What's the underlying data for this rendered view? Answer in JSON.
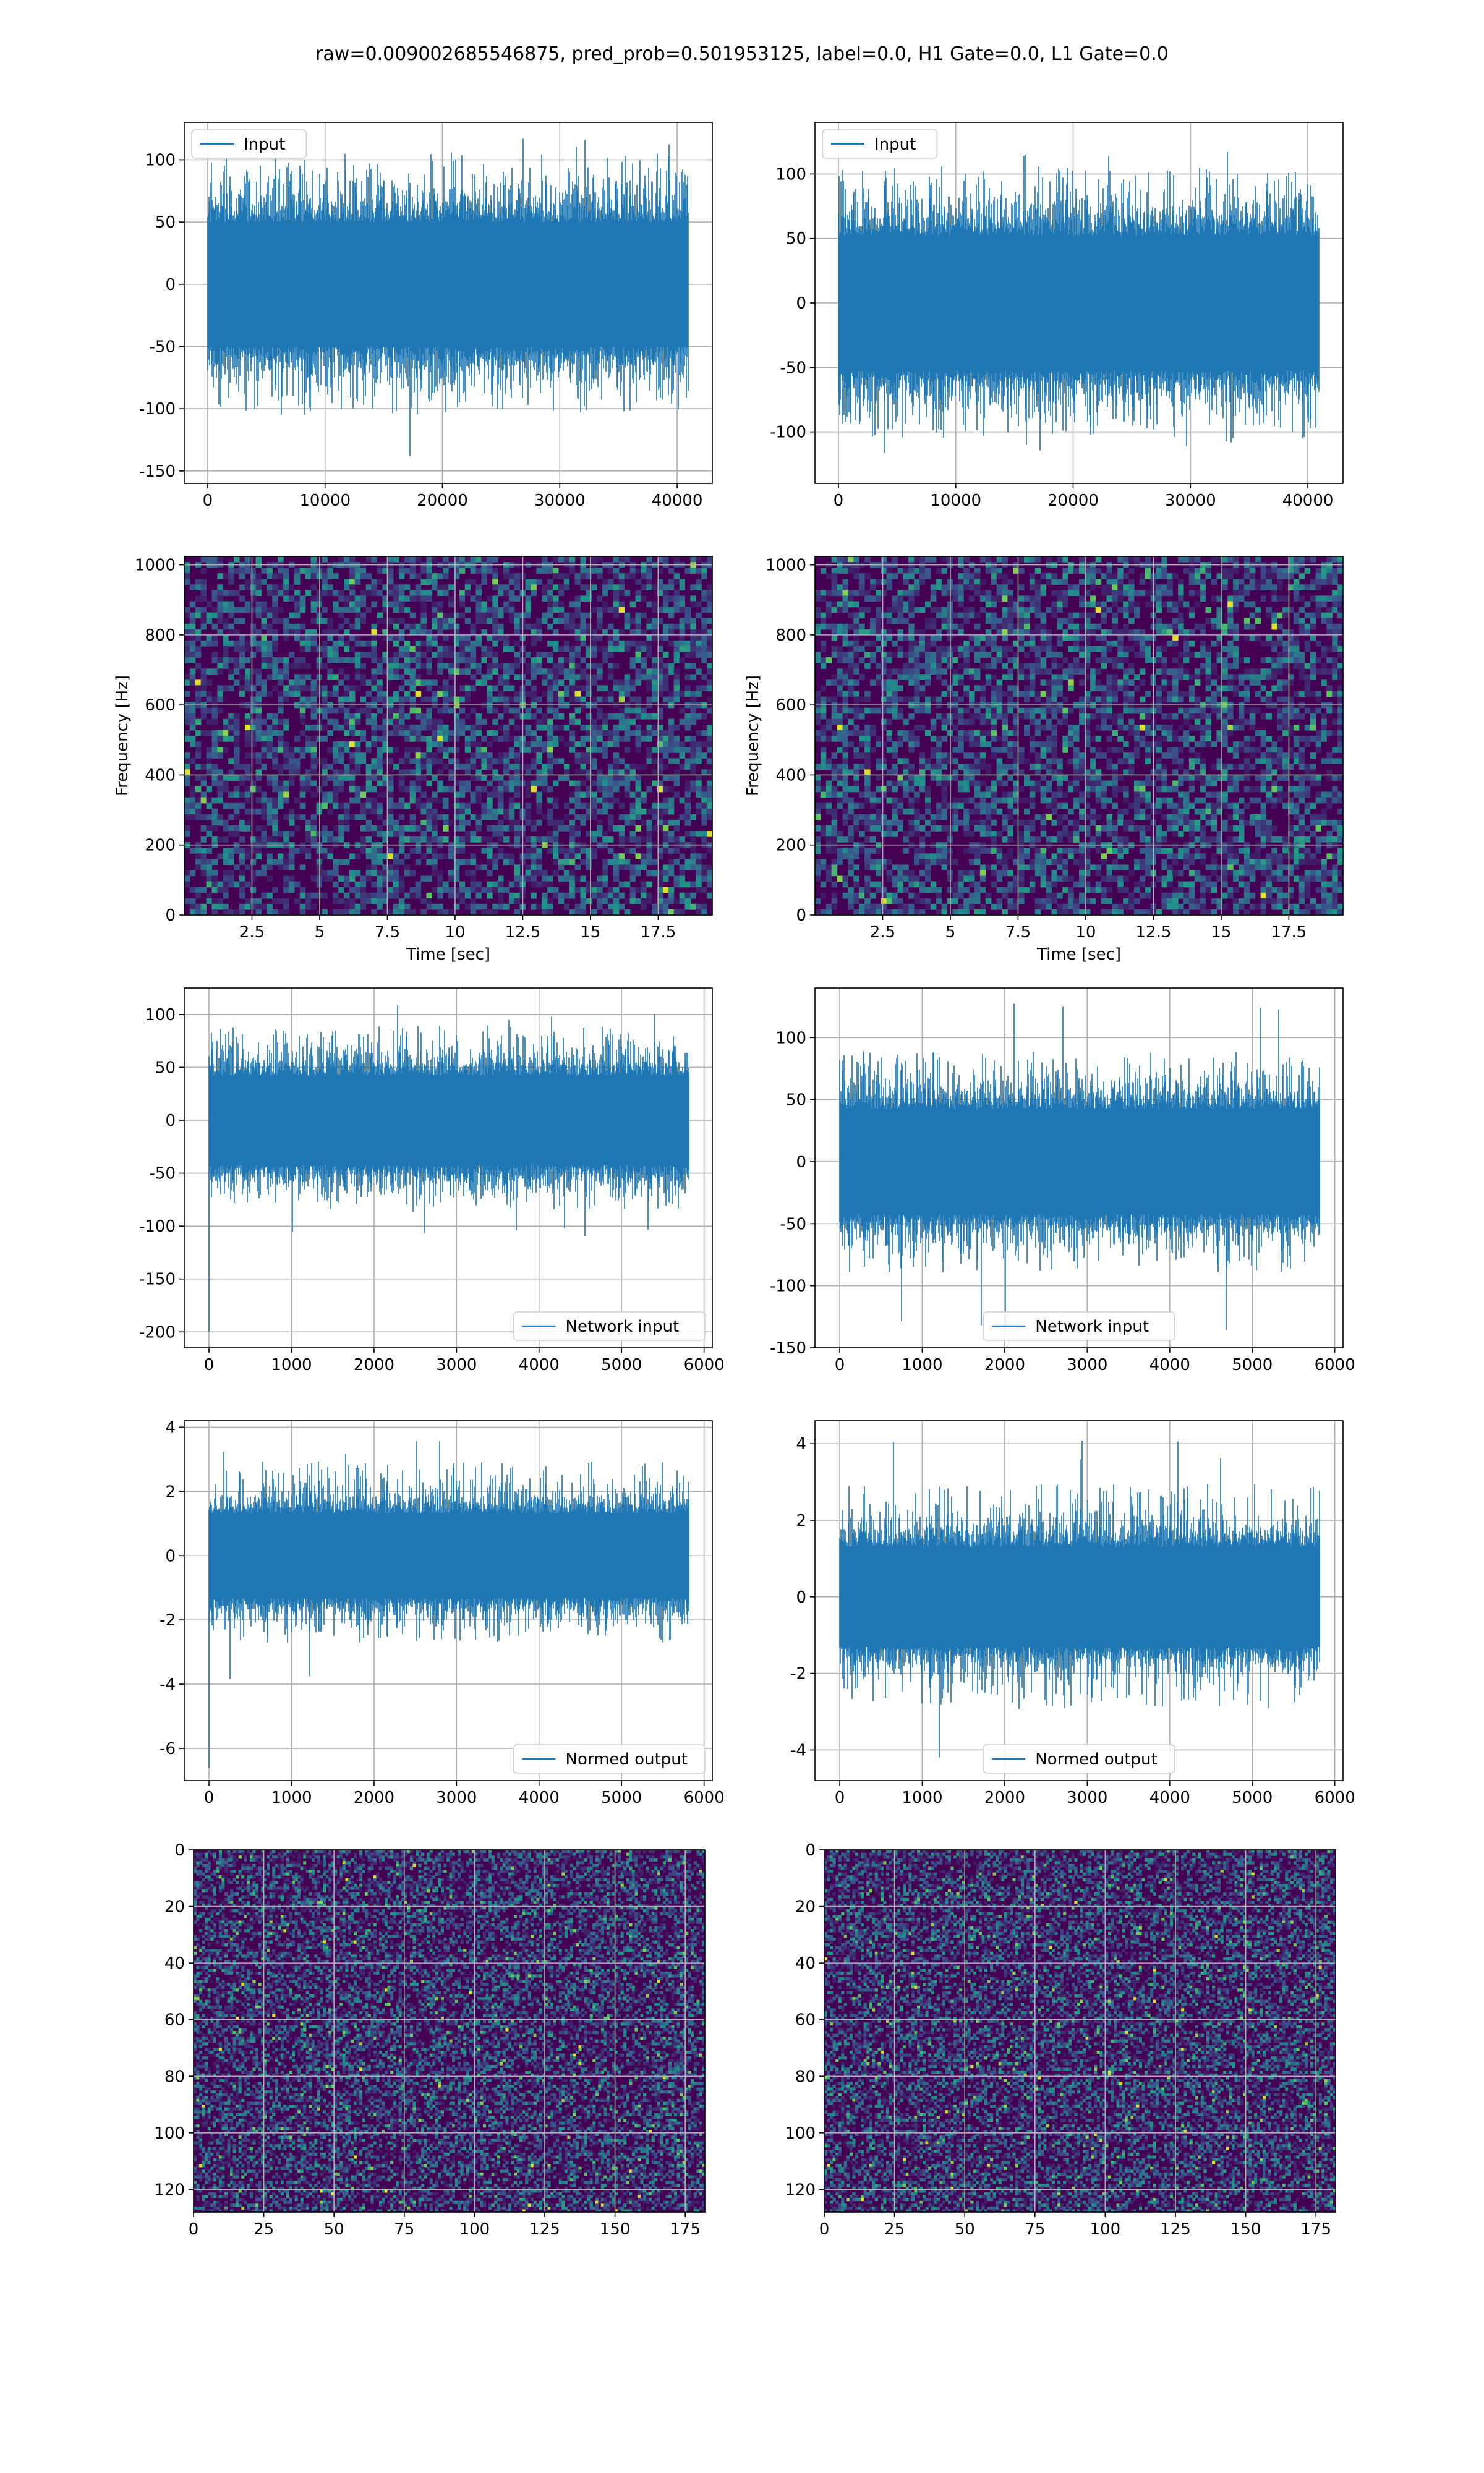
{
  "figure": {
    "title": "raw=0.009002685546875, pred_prob=0.501953125, label=0.0, H1 Gate=0.0, L1 Gate=0.0"
  },
  "colors": {
    "line": "#1f77b4",
    "grid": "#b0b0b0",
    "axes": "#000000",
    "viridis_low": "#440154",
    "viridis_mid": "#21918c",
    "viridis_high": "#fde725"
  },
  "chart_data": [
    {
      "id": "input-h1",
      "type": "line",
      "xlim": [
        -2000,
        43000
      ],
      "ylim": [
        -160,
        130
      ],
      "xticks": [
        0,
        10000,
        20000,
        30000,
        40000
      ],
      "yticks": [
        -150,
        -100,
        -50,
        0,
        50,
        100
      ],
      "x_range": [
        0,
        40959
      ],
      "envelope": {
        "typical": 65,
        "peaks_high": [
          100,
          123
        ],
        "peaks_low": [
          -100,
          -148
        ]
      },
      "series": [
        {
          "name": "Input"
        }
      ],
      "legend": "upper left",
      "grid": true,
      "xlabel": "",
      "ylabel": ""
    },
    {
      "id": "input-l1",
      "type": "line",
      "xlim": [
        -2000,
        43000
      ],
      "ylim": [
        -140,
        140
      ],
      "xticks": [
        0,
        10000,
        20000,
        30000,
        40000
      ],
      "yticks": [
        -100,
        -50,
        0,
        50,
        100
      ],
      "x_range": [
        0,
        40959
      ],
      "envelope": {
        "typical": 68,
        "peaks_high": [
          100,
          128
        ],
        "peaks_low": [
          -100,
          -125
        ]
      },
      "series": [
        {
          "name": "Input"
        }
      ],
      "legend": "upper left",
      "grid": true,
      "xlabel": "",
      "ylabel": ""
    },
    {
      "id": "spectrogram-h1",
      "type": "heatmap",
      "xlim": [
        0,
        19.5
      ],
      "ylim": [
        0,
        1024
      ],
      "xticks": [
        2.5,
        5.0,
        7.5,
        10.0,
        12.5,
        15.0,
        17.5
      ],
      "yticks": [
        0,
        200,
        400,
        600,
        800,
        1000
      ],
      "xlabel": "Time [sec]",
      "ylabel": "Frequency [Hz]",
      "colormap": "viridis",
      "grid": true
    },
    {
      "id": "spectrogram-l1",
      "type": "heatmap",
      "xlim": [
        0,
        19.5
      ],
      "ylim": [
        0,
        1024
      ],
      "xticks": [
        2.5,
        5.0,
        7.5,
        10.0,
        12.5,
        15.0,
        17.5
      ],
      "yticks": [
        0,
        200,
        400,
        600,
        800,
        1000
      ],
      "xlabel": "Time [sec]",
      "ylabel": "Frequency [Hz]",
      "colormap": "viridis",
      "grid": true
    },
    {
      "id": "network-input-h1",
      "type": "line",
      "xlim": [
        -300,
        6100
      ],
      "ylim": [
        -215,
        125
      ],
      "xticks": [
        0,
        1000,
        2000,
        3000,
        4000,
        5000,
        6000
      ],
      "yticks": [
        -200,
        -150,
        -100,
        -50,
        0,
        50,
        100
      ],
      "x_range": [
        0,
        5820
      ],
      "envelope": {
        "typical": 55,
        "peaks_high": [
          85,
          110
        ],
        "peaks_low": [
          -80,
          -115
        ]
      },
      "spike": {
        "x": 0,
        "y": -200
      },
      "series": [
        {
          "name": "Network input"
        }
      ],
      "legend": "lower right",
      "grid": true,
      "xlabel": "",
      "ylabel": ""
    },
    {
      "id": "network-input-l1",
      "type": "line",
      "xlim": [
        -300,
        6100
      ],
      "ylim": [
        -150,
        140
      ],
      "xticks": [
        0,
        1000,
        2000,
        3000,
        4000,
        5000,
        6000
      ],
      "yticks": [
        -150,
        -100,
        -50,
        0,
        50,
        100
      ],
      "x_range": [
        0,
        5820
      ],
      "envelope": {
        "typical": 55,
        "peaks_high": [
          85,
          128
        ],
        "peaks_low": [
          -85,
          -138
        ]
      },
      "series": [
        {
          "name": "Network input"
        }
      ],
      "legend": "lower center",
      "grid": true,
      "xlabel": "",
      "ylabel": ""
    },
    {
      "id": "normed-output-h1",
      "type": "line",
      "xlim": [
        -300,
        6100
      ],
      "ylim": [
        -7,
        4.2
      ],
      "xticks": [
        0,
        1000,
        2000,
        3000,
        4000,
        5000,
        6000
      ],
      "yticks": [
        -6,
        -4,
        -2,
        0,
        2,
        4
      ],
      "x_range": [
        0,
        5820
      ],
      "envelope": {
        "typical": 1.7,
        "peaks_high": [
          2.8,
          3.6
        ],
        "peaks_low": [
          -2.6,
          -4.0
        ]
      },
      "spike": {
        "x": 0,
        "y": -6.6
      },
      "series": [
        {
          "name": "Normed output"
        }
      ],
      "legend": "lower right",
      "grid": true,
      "xlabel": "",
      "ylabel": ""
    },
    {
      "id": "normed-output-l1",
      "type": "line",
      "xlim": [
        -300,
        6100
      ],
      "ylim": [
        -4.8,
        4.6
      ],
      "xticks": [
        0,
        1000,
        2000,
        3000,
        4000,
        5000,
        6000
      ],
      "yticks": [
        -4,
        -2,
        0,
        2,
        4
      ],
      "x_range": [
        0,
        5820
      ],
      "envelope": {
        "typical": 1.7,
        "peaks_high": [
          2.8,
          4.2
        ],
        "peaks_low": [
          -2.8,
          -4.5
        ]
      },
      "series": [
        {
          "name": "Normed output"
        }
      ],
      "legend": "lower center",
      "grid": true,
      "xlabel": "",
      "ylabel": ""
    },
    {
      "id": "qtransform-h1",
      "type": "heatmap",
      "xlim": [
        0,
        182
      ],
      "ylim": [
        128,
        0
      ],
      "xticks": [
        0,
        25,
        50,
        75,
        100,
        125,
        150,
        175
      ],
      "yticks": [
        0,
        20,
        40,
        60,
        80,
        100,
        120
      ],
      "colormap": "viridis",
      "grid": true,
      "xlabel": "",
      "ylabel": ""
    },
    {
      "id": "qtransform-l1",
      "type": "heatmap",
      "xlim": [
        0,
        182
      ],
      "ylim": [
        128,
        0
      ],
      "xticks": [
        0,
        25,
        50,
        75,
        100,
        125,
        150,
        175
      ],
      "yticks": [
        0,
        20,
        40,
        60,
        80,
        100,
        120
      ],
      "colormap": "viridis",
      "grid": true,
      "xlabel": "",
      "ylabel": ""
    }
  ]
}
